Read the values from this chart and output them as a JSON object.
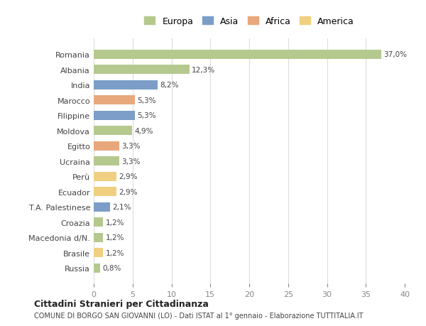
{
  "categories": [
    "Romania",
    "Albania",
    "India",
    "Marocco",
    "Filippine",
    "Moldova",
    "Egitto",
    "Ucraina",
    "Perù",
    "Ecuador",
    "T.A. Palestinese",
    "Croazia",
    "Macedonia d/N.",
    "Brasile",
    "Russia"
  ],
  "values": [
    37.0,
    12.3,
    8.2,
    5.3,
    5.3,
    4.9,
    3.3,
    3.3,
    2.9,
    2.9,
    2.1,
    1.2,
    1.2,
    1.2,
    0.8
  ],
  "labels": [
    "37,0%",
    "12,3%",
    "8,2%",
    "5,3%",
    "5,3%",
    "4,9%",
    "3,3%",
    "3,3%",
    "2,9%",
    "2,9%",
    "2,1%",
    "1,2%",
    "1,2%",
    "1,2%",
    "0,8%"
  ],
  "continent": [
    "Europa",
    "Europa",
    "Asia",
    "Africa",
    "Asia",
    "Europa",
    "Africa",
    "Europa",
    "America",
    "America",
    "Asia",
    "Europa",
    "Europa",
    "America",
    "Europa"
  ],
  "colors": {
    "Europa": "#b5c98e",
    "Asia": "#7b9dc7",
    "Africa": "#e8a87c",
    "America": "#f0d080"
  },
  "legend_labels": [
    "Europa",
    "Asia",
    "Africa",
    "America"
  ],
  "title": "Cittadini Stranieri per Cittadinanza",
  "subtitle": "COMUNE DI BORGO SAN GIOVANNI (LO) - Dati ISTAT al 1° gennaio - Elaborazione TUTTITALIA.IT",
  "xlim": [
    0,
    40
  ],
  "xticks": [
    0,
    5,
    10,
    15,
    20,
    25,
    30,
    35,
    40
  ],
  "bg_color": "#ffffff",
  "grid_color": "#dddddd",
  "bar_height": 0.6
}
